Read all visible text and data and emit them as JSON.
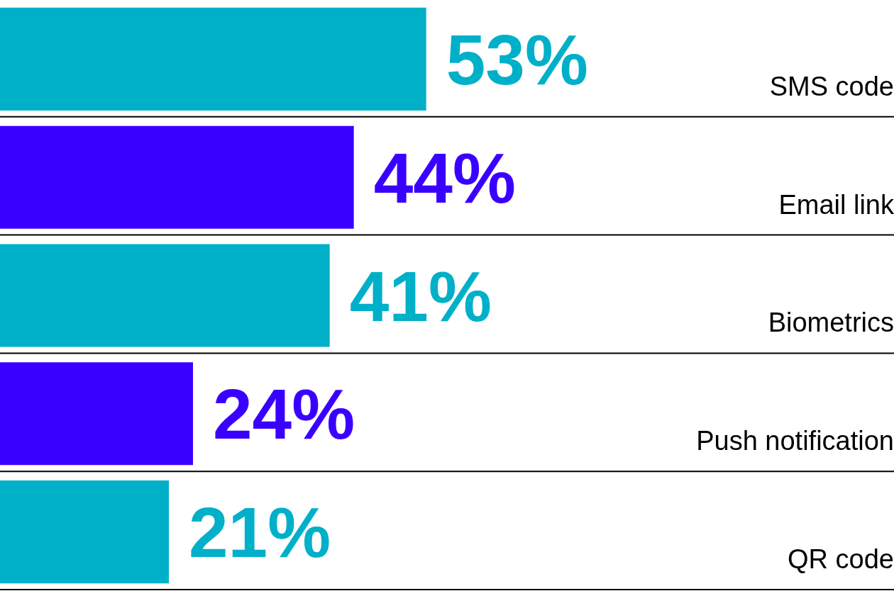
{
  "chart_data": {
    "type": "bar",
    "orientation": "horizontal",
    "tick_labels": "y",
    "categories": [
      "SMS code",
      "Email link",
      "Biometrics",
      "Push notification",
      "QR code"
    ],
    "values": [
      53,
      44,
      41,
      24,
      21
    ],
    "colors": [
      "#00b0c8",
      "#3a00ff",
      "#00b0c8",
      "#3a00ff",
      "#00b0c8"
    ],
    "value_labels": [
      "53%",
      "44%",
      "41%",
      "24%",
      "21%"
    ],
    "grid": "y",
    "legend": false
  }
}
